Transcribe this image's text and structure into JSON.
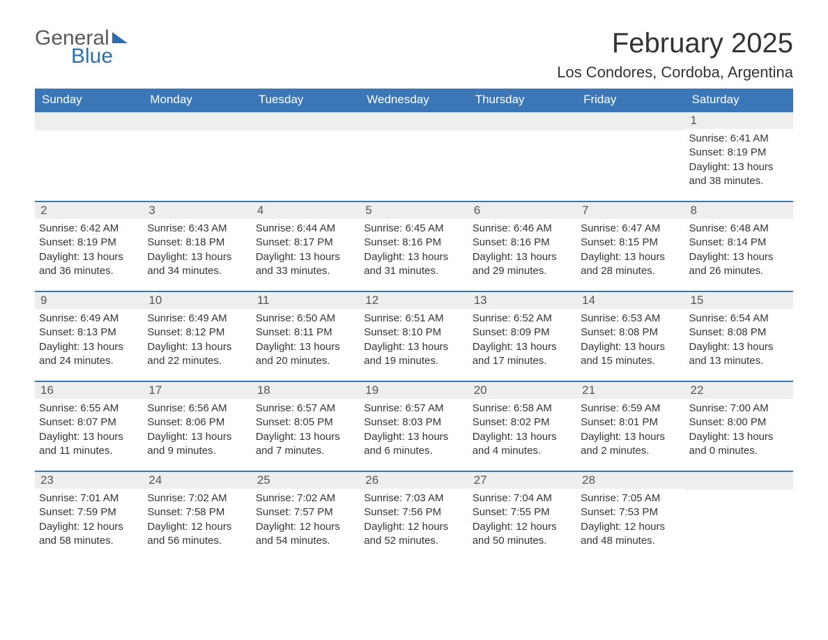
{
  "brand": {
    "word1": "General",
    "word2": "Blue"
  },
  "title": "February 2025",
  "location": "Los Condores, Cordoba, Argentina",
  "colors": {
    "header_bg": "#3b77b6",
    "header_text": "#ffffff",
    "strip_bg": "#eeeeee",
    "strip_border": "#3b77b6",
    "body_text": "#333333",
    "brand_blue": "#2a6db0"
  },
  "day_headers": [
    "Sunday",
    "Monday",
    "Tuesday",
    "Wednesday",
    "Thursday",
    "Friday",
    "Saturday"
  ],
  "labels": {
    "sunrise": "Sunrise: ",
    "sunset": "Sunset: ",
    "daylight": "Daylight: "
  },
  "weeks": [
    [
      null,
      null,
      null,
      null,
      null,
      null,
      {
        "n": "1",
        "sunrise": "6:41 AM",
        "sunset": "8:19 PM",
        "daylight": "13 hours and 38 minutes."
      }
    ],
    [
      {
        "n": "2",
        "sunrise": "6:42 AM",
        "sunset": "8:19 PM",
        "daylight": "13 hours and 36 minutes."
      },
      {
        "n": "3",
        "sunrise": "6:43 AM",
        "sunset": "8:18 PM",
        "daylight": "13 hours and 34 minutes."
      },
      {
        "n": "4",
        "sunrise": "6:44 AM",
        "sunset": "8:17 PM",
        "daylight": "13 hours and 33 minutes."
      },
      {
        "n": "5",
        "sunrise": "6:45 AM",
        "sunset": "8:16 PM",
        "daylight": "13 hours and 31 minutes."
      },
      {
        "n": "6",
        "sunrise": "6:46 AM",
        "sunset": "8:16 PM",
        "daylight": "13 hours and 29 minutes."
      },
      {
        "n": "7",
        "sunrise": "6:47 AM",
        "sunset": "8:15 PM",
        "daylight": "13 hours and 28 minutes."
      },
      {
        "n": "8",
        "sunrise": "6:48 AM",
        "sunset": "8:14 PM",
        "daylight": "13 hours and 26 minutes."
      }
    ],
    [
      {
        "n": "9",
        "sunrise": "6:49 AM",
        "sunset": "8:13 PM",
        "daylight": "13 hours and 24 minutes."
      },
      {
        "n": "10",
        "sunrise": "6:49 AM",
        "sunset": "8:12 PM",
        "daylight": "13 hours and 22 minutes."
      },
      {
        "n": "11",
        "sunrise": "6:50 AM",
        "sunset": "8:11 PM",
        "daylight": "13 hours and 20 minutes."
      },
      {
        "n": "12",
        "sunrise": "6:51 AM",
        "sunset": "8:10 PM",
        "daylight": "13 hours and 19 minutes."
      },
      {
        "n": "13",
        "sunrise": "6:52 AM",
        "sunset": "8:09 PM",
        "daylight": "13 hours and 17 minutes."
      },
      {
        "n": "14",
        "sunrise": "6:53 AM",
        "sunset": "8:08 PM",
        "daylight": "13 hours and 15 minutes."
      },
      {
        "n": "15",
        "sunrise": "6:54 AM",
        "sunset": "8:08 PM",
        "daylight": "13 hours and 13 minutes."
      }
    ],
    [
      {
        "n": "16",
        "sunrise": "6:55 AM",
        "sunset": "8:07 PM",
        "daylight": "13 hours and 11 minutes."
      },
      {
        "n": "17",
        "sunrise": "6:56 AM",
        "sunset": "8:06 PM",
        "daylight": "13 hours and 9 minutes."
      },
      {
        "n": "18",
        "sunrise": "6:57 AM",
        "sunset": "8:05 PM",
        "daylight": "13 hours and 7 minutes."
      },
      {
        "n": "19",
        "sunrise": "6:57 AM",
        "sunset": "8:03 PM",
        "daylight": "13 hours and 6 minutes."
      },
      {
        "n": "20",
        "sunrise": "6:58 AM",
        "sunset": "8:02 PM",
        "daylight": "13 hours and 4 minutes."
      },
      {
        "n": "21",
        "sunrise": "6:59 AM",
        "sunset": "8:01 PM",
        "daylight": "13 hours and 2 minutes."
      },
      {
        "n": "22",
        "sunrise": "7:00 AM",
        "sunset": "8:00 PM",
        "daylight": "13 hours and 0 minutes."
      }
    ],
    [
      {
        "n": "23",
        "sunrise": "7:01 AM",
        "sunset": "7:59 PM",
        "daylight": "12 hours and 58 minutes."
      },
      {
        "n": "24",
        "sunrise": "7:02 AM",
        "sunset": "7:58 PM",
        "daylight": "12 hours and 56 minutes."
      },
      {
        "n": "25",
        "sunrise": "7:02 AM",
        "sunset": "7:57 PM",
        "daylight": "12 hours and 54 minutes."
      },
      {
        "n": "26",
        "sunrise": "7:03 AM",
        "sunset": "7:56 PM",
        "daylight": "12 hours and 52 minutes."
      },
      {
        "n": "27",
        "sunrise": "7:04 AM",
        "sunset": "7:55 PM",
        "daylight": "12 hours and 50 minutes."
      },
      {
        "n": "28",
        "sunrise": "7:05 AM",
        "sunset": "7:53 PM",
        "daylight": "12 hours and 48 minutes."
      },
      null
    ]
  ]
}
